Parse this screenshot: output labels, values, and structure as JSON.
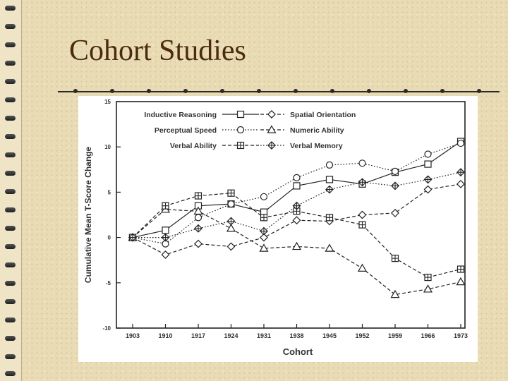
{
  "slide": {
    "title": "Cohort Studies"
  },
  "chart_data": {
    "type": "line",
    "xlabel": "Cohort",
    "ylabel": "Cumulative Mean T-Score Change",
    "categories": [
      "1903",
      "1910",
      "1917",
      "1924",
      "1931",
      "1938",
      "1945",
      "1952",
      "1959",
      "1966",
      "1973"
    ],
    "ylim": [
      -10,
      15
    ],
    "yticks": [
      -10,
      -5,
      0,
      5,
      10,
      15
    ],
    "grid": false,
    "legend_position": "top",
    "series": [
      {
        "name": "Inductive Reasoning",
        "marker": "square-open",
        "line": "solid",
        "values": [
          0,
          0.8,
          3.5,
          3.7,
          2.8,
          5.7,
          6.4,
          5.9,
          7.2,
          8.1,
          10.6
        ]
      },
      {
        "name": "Spatial Orientation",
        "marker": "diamond-open",
        "line": "dashed",
        "values": [
          0,
          -1.9,
          -0.7,
          -1.0,
          0,
          1.9,
          1.8,
          2.5,
          2.7,
          5.3,
          5.9
        ]
      },
      {
        "name": "Perceptual Speed",
        "marker": "circle-open",
        "line": "dotted",
        "values": [
          0,
          -0.7,
          2.2,
          3.7,
          4.5,
          6.6,
          8.0,
          8.2,
          7.3,
          9.2,
          10.4
        ]
      },
      {
        "name": "Numeric Ability",
        "marker": "triangle-open",
        "line": "dashed",
        "values": [
          0,
          3.1,
          2.9,
          1.0,
          -1.2,
          -1.0,
          -1.2,
          -3.4,
          -6.3,
          -5.7,
          -4.9
        ]
      },
      {
        "name": "Verbal Ability",
        "marker": "square-cross",
        "line": "dashed",
        "values": [
          0,
          3.5,
          4.6,
          4.9,
          2.2,
          2.9,
          2.2,
          1.4,
          -2.3,
          -4.4,
          -3.5
        ]
      },
      {
        "name": "Verbal Memory",
        "marker": "diamond-cross",
        "line": "dotted",
        "values": [
          0,
          0,
          1.0,
          1.8,
          0.7,
          3.5,
          5.3,
          6.1,
          5.7,
          6.4,
          7.2
        ]
      }
    ]
  }
}
